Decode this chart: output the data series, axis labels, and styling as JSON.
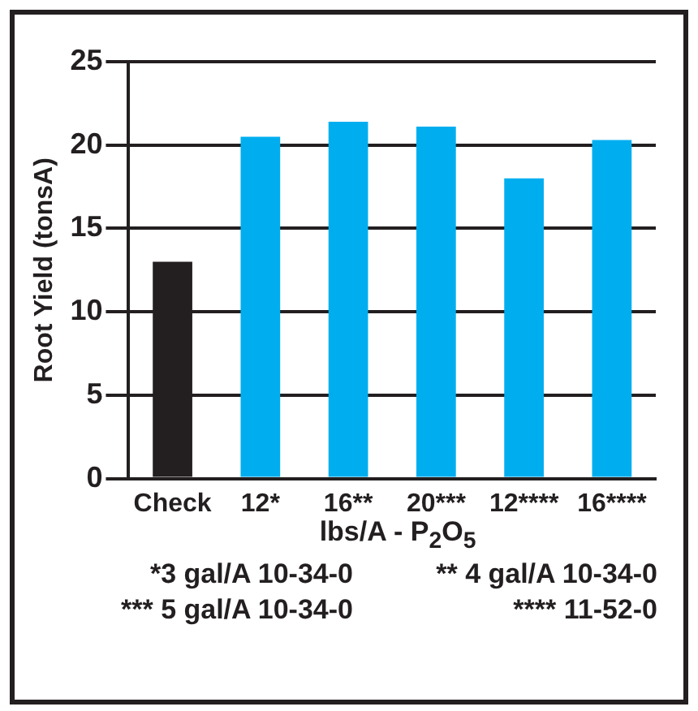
{
  "chart_data": {
    "type": "bar",
    "xlabel": "lbs/A - P$_{2}$O$_{5}$",
    "ylabel": "Root Yield (tonsA)",
    "categories": [
      "Check",
      "12*",
      "16**",
      "20***",
      "12****",
      "16****"
    ],
    "values": [
      13,
      20.5,
      21.4,
      21.1,
      18.0,
      20.3
    ],
    "colors": [
      "#231f20",
      "#00aeef",
      "#00aeef",
      "#00aeef",
      "#00aeef",
      "#00aeef"
    ],
    "ylim": [
      0,
      25
    ],
    "yticks": [
      0,
      5,
      10,
      15,
      20,
      25
    ],
    "grid": "y",
    "legend": false,
    "annotations": [
      "*3 gal/A 10-34-0",
      "** 4 gal/A 10-34-0",
      "*** 5 gal/A 10-34-0",
      "**** 11-52-0"
    ]
  }
}
